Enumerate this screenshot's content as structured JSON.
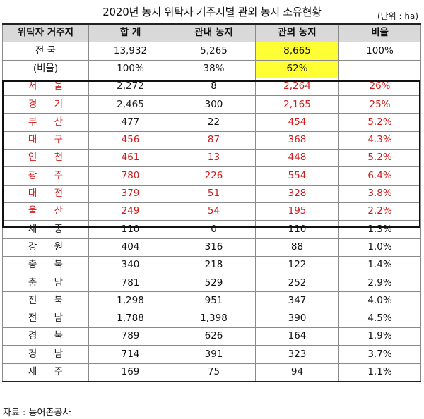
{
  "title": "2020년 농지 위탁자 거주지별 관외 농지 소유현황",
  "unit": "(단위 : ha)",
  "columns": [
    "위탁자 거주지",
    "합 계",
    "관내 농지",
    "관외 농지",
    "비율"
  ],
  "total": {
    "name": "전 국",
    "sum": "13,932",
    "inside": "5,265",
    "outside": "8,665",
    "ratio": "100%"
  },
  "share": {
    "name": "(비율)",
    "sum": "100%",
    "inside": "38%",
    "outside": "62%",
    "ratio": ""
  },
  "metro_rows": [
    {
      "name": "서 울",
      "sum": "2,272",
      "inside": "8",
      "outside": "2,264",
      "ratio": "26%"
    },
    {
      "name": "경 기",
      "sum": "2,465",
      "inside": "300",
      "outside": "2,165",
      "ratio": "25%"
    },
    {
      "name": "부 산",
      "sum": "477",
      "inside": "22",
      "outside": "454",
      "ratio": "5.2%"
    },
    {
      "name": "대 구",
      "sum": "456",
      "inside": "87",
      "outside": "368",
      "ratio": "4.3%"
    },
    {
      "name": "인 천",
      "sum": "461",
      "inside": "13",
      "outside": "448",
      "ratio": "5.2%"
    },
    {
      "name": "광 주",
      "sum": "780",
      "inside": "226",
      "outside": "554",
      "ratio": "6.4%"
    },
    {
      "name": "대 전",
      "sum": "379",
      "inside": "51",
      "outside": "328",
      "ratio": "3.8%"
    },
    {
      "name": "울 산",
      "sum": "249",
      "inside": "54",
      "outside": "195",
      "ratio": "2.2%"
    }
  ],
  "other_rows": [
    {
      "name": "세 종",
      "sum": "110",
      "inside": "0",
      "outside": "110",
      "ratio": "1.3%"
    },
    {
      "name": "강 원",
      "sum": "404",
      "inside": "316",
      "outside": "88",
      "ratio": "1.0%"
    },
    {
      "name": "충 북",
      "sum": "340",
      "inside": "218",
      "outside": "122",
      "ratio": "1.4%"
    },
    {
      "name": "충 남",
      "sum": "781",
      "inside": "529",
      "outside": "252",
      "ratio": "2.9%"
    },
    {
      "name": "전 북",
      "sum": "1,298",
      "inside": "951",
      "outside": "347",
      "ratio": "4.0%"
    },
    {
      "name": "전 남",
      "sum": "1,788",
      "inside": "1,398",
      "outside": "390",
      "ratio": "4.5%"
    },
    {
      "name": "경 북",
      "sum": "789",
      "inside": "626",
      "outside": "164",
      "ratio": "1.9%"
    },
    {
      "name": "경 남",
      "sum": "714",
      "inside": "391",
      "outside": "323",
      "ratio": "3.7%"
    },
    {
      "name": "제 주",
      "sum": "169",
      "inside": "75",
      "outside": "94",
      "ratio": "1.1%"
    }
  ],
  "source": "자료 : 농어촌공사"
}
